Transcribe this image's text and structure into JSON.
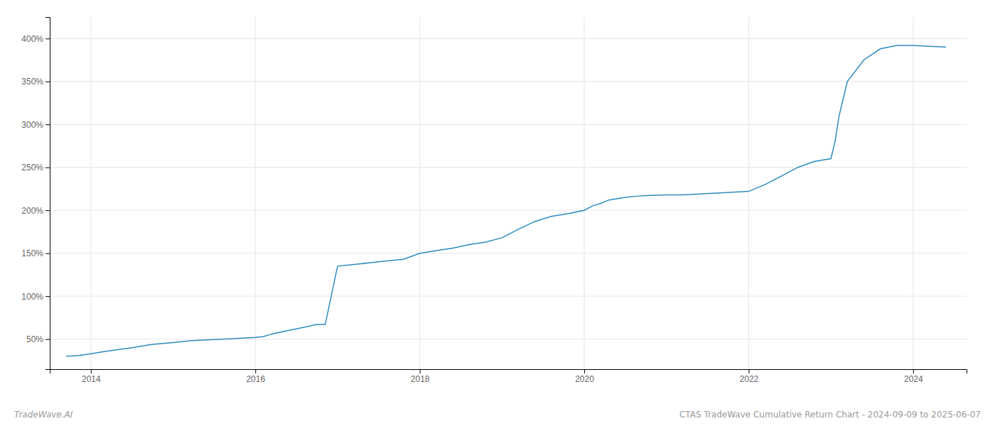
{
  "chart_data": {
    "type": "line",
    "title": "CTAS TradeWave Cumulative Return Chart - 2024-09-09 to 2025-06-07",
    "annotations": [
      "TradeWave.AI"
    ],
    "x": [
      2013.7,
      2013.85,
      2014.0,
      2014.2,
      2014.5,
      2014.75,
      2015.0,
      2015.2,
      2015.4,
      2015.6,
      2015.8,
      2016.0,
      2016.1,
      2016.2,
      2016.4,
      2016.6,
      2016.75,
      2016.85,
      2017.0,
      2017.2,
      2017.4,
      2017.6,
      2017.8,
      2018.0,
      2018.2,
      2018.4,
      2018.6,
      2018.8,
      2019.0,
      2019.2,
      2019.4,
      2019.6,
      2019.8,
      2020.0,
      2020.1,
      2020.2,
      2020.3,
      2020.5,
      2020.7,
      2021.0,
      2021.2,
      2021.4,
      2021.6,
      2021.8,
      2022.0,
      2022.2,
      2022.4,
      2022.6,
      2022.8,
      2023.0,
      2023.05,
      2023.1,
      2023.2,
      2023.4,
      2023.6,
      2023.8,
      2024.0,
      2024.2,
      2024.4
    ],
    "values": [
      30,
      31,
      33,
      36,
      40,
      44,
      46,
      48,
      49,
      50,
      51,
      52,
      53,
      56,
      60,
      64,
      67,
      67,
      135,
      137,
      139,
      141,
      143,
      150,
      153,
      156,
      160,
      163,
      168,
      178,
      187,
      193,
      196,
      200,
      205,
      208,
      212,
      215,
      217,
      218,
      218,
      219,
      220,
      221,
      222,
      230,
      240,
      250,
      257,
      260,
      280,
      310,
      350,
      375,
      388,
      392,
      392,
      391,
      390
    ],
    "color": "#2b8cbe",
    "xlim": [
      2013.5,
      2024.65
    ],
    "ylim": [
      15,
      425
    ],
    "xticks": [
      2014,
      2016,
      2018,
      2020,
      2022,
      2024
    ],
    "yticks": [
      {
        "value": 50,
        "label": "50%"
      },
      {
        "value": 100,
        "label": "100%"
      },
      {
        "value": 150,
        "label": "150%"
      },
      {
        "value": 200,
        "label": "200%"
      },
      {
        "value": 250,
        "label": "250%"
      },
      {
        "value": 300,
        "label": "300%"
      },
      {
        "value": 350,
        "label": "350%"
      },
      {
        "value": 400,
        "label": "400%"
      }
    ],
    "grid": true
  }
}
